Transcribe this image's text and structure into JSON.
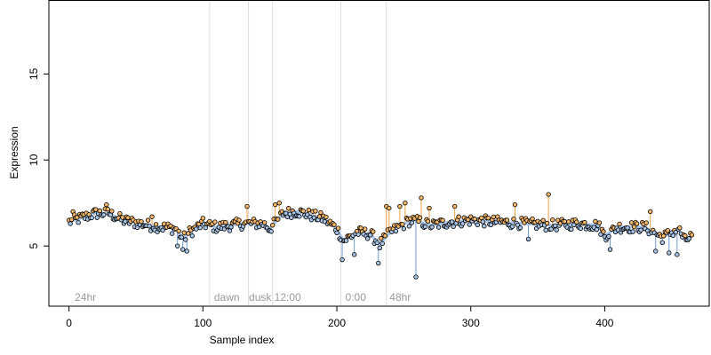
{
  "chart_data": {
    "type": "scatter",
    "title": "",
    "xlabel": "Sample index",
    "ylabel": "Expression",
    "xlim": [
      -15,
      478
    ],
    "ylim": [
      1.5,
      19.3
    ],
    "x_ticks": [
      0,
      100,
      200,
      300,
      400
    ],
    "y_ticks": [
      5,
      10,
      15
    ],
    "grid": false,
    "colors": {
      "point_fill_high": "#f4b66a",
      "point_fill_low": "#a8c4e6",
      "segment_high": "#f0a040",
      "segment_low": "#6f9bd4",
      "smooth_line": "#a8c4e6",
      "vline": "#dddddd",
      "annotation": "#9a9a9a"
    },
    "vertical_lines": [
      105,
      134,
      152,
      203,
      237
    ],
    "annotations": [
      {
        "x": 3,
        "label": "24hr"
      },
      {
        "x": 107,
        "label": "dawn"
      },
      {
        "x": 133,
        "label": "dusk"
      },
      {
        "x": 152,
        "label": "12:00"
      },
      {
        "x": 205,
        "label": "0:00"
      },
      {
        "x": 238,
        "label": "48hr"
      }
    ],
    "smooth": [
      [
        0,
        6.4
      ],
      [
        20,
        6.9
      ],
      [
        30,
        6.9
      ],
      [
        40,
        6.5
      ],
      [
        60,
        6.2
      ],
      [
        80,
        6.0
      ],
      [
        85,
        5.4
      ],
      [
        90,
        5.8
      ],
      [
        100,
        6.3
      ],
      [
        110,
        6.1
      ],
      [
        130,
        6.3
      ],
      [
        145,
        6.3
      ],
      [
        150,
        6.0
      ],
      [
        160,
        6.9
      ],
      [
        170,
        7.0
      ],
      [
        190,
        6.6
      ],
      [
        200,
        6.0
      ],
      [
        205,
        5.3
      ],
      [
        215,
        5.8
      ],
      [
        225,
        5.7
      ],
      [
        232,
        5.1
      ],
      [
        240,
        5.8
      ],
      [
        255,
        6.5
      ],
      [
        262,
        6.4
      ],
      [
        270,
        6.2
      ],
      [
        285,
        6.4
      ],
      [
        300,
        6.5
      ],
      [
        320,
        6.4
      ],
      [
        340,
        6.3
      ],
      [
        360,
        6.2
      ],
      [
        380,
        6.3
      ],
      [
        395,
        6.2
      ],
      [
        400,
        5.6
      ],
      [
        410,
        6.1
      ],
      [
        430,
        6.1
      ],
      [
        443,
        5.5
      ],
      [
        455,
        6.0
      ],
      [
        460,
        5.3
      ],
      [
        465,
        5.6
      ]
    ],
    "extremes": [
      {
        "x": 3,
        "y": 7.0
      },
      {
        "x": 28,
        "y": 7.4
      },
      {
        "x": 62,
        "y": 6.7
      },
      {
        "x": 81,
        "y": 5.0
      },
      {
        "x": 85,
        "y": 4.8
      },
      {
        "x": 88,
        "y": 4.7
      },
      {
        "x": 133,
        "y": 7.3
      },
      {
        "x": 154,
        "y": 7.4
      },
      {
        "x": 157,
        "y": 7.5
      },
      {
        "x": 204,
        "y": 4.2
      },
      {
        "x": 213,
        "y": 4.5
      },
      {
        "x": 231,
        "y": 4.0
      },
      {
        "x": 237,
        "y": 7.3
      },
      {
        "x": 239,
        "y": 7.2
      },
      {
        "x": 247,
        "y": 7.3
      },
      {
        "x": 251,
        "y": 7.5
      },
      {
        "x": 259,
        "y": 3.2
      },
      {
        "x": 263,
        "y": 7.8
      },
      {
        "x": 269,
        "y": 7.2
      },
      {
        "x": 288,
        "y": 7.3
      },
      {
        "x": 333,
        "y": 7.4
      },
      {
        "x": 343,
        "y": 5.4
      },
      {
        "x": 358,
        "y": 8.0
      },
      {
        "x": 404,
        "y": 4.8
      },
      {
        "x": 434,
        "y": 7.0
      },
      {
        "x": 438,
        "y": 4.7
      },
      {
        "x": 448,
        "y": 4.6
      },
      {
        "x": 454,
        "y": 4.5
      }
    ],
    "noise_amplitude": 0.32
  }
}
